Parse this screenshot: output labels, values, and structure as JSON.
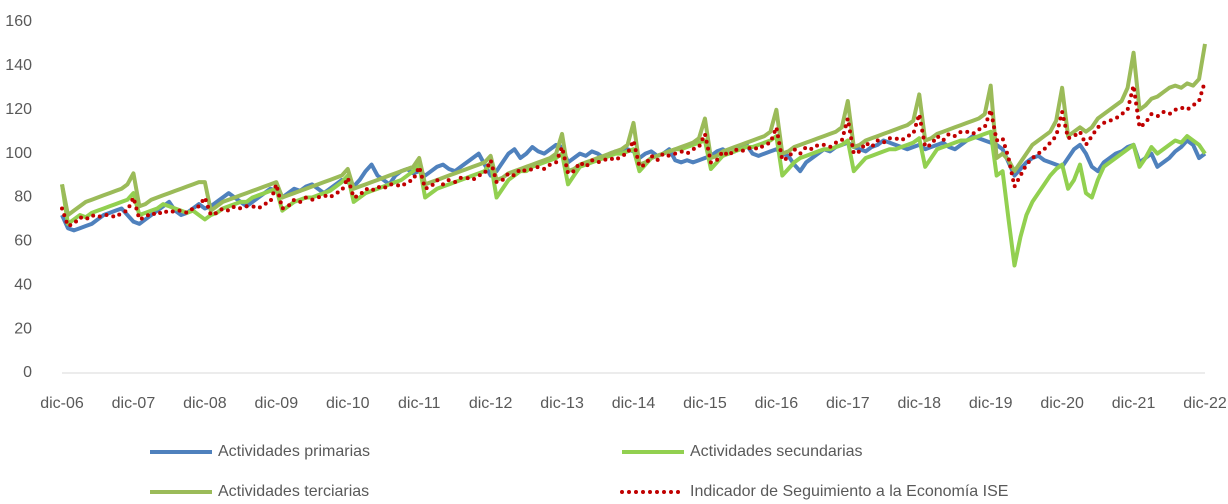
{
  "chart_data": {
    "type": "line",
    "categories": [
      "dic-06",
      null,
      null,
      null,
      null,
      null,
      null,
      null,
      null,
      null,
      null,
      null,
      "dic-07",
      null,
      null,
      null,
      null,
      null,
      null,
      null,
      null,
      null,
      null,
      null,
      "dic-08",
      null,
      null,
      null,
      null,
      null,
      null,
      null,
      null,
      null,
      null,
      null,
      "dic-09",
      null,
      null,
      null,
      null,
      null,
      null,
      null,
      null,
      null,
      null,
      null,
      "dic-10",
      null,
      null,
      null,
      null,
      null,
      null,
      null,
      null,
      null,
      null,
      null,
      "dic-11",
      null,
      null,
      null,
      null,
      null,
      null,
      null,
      null,
      null,
      null,
      null,
      "dic-12",
      null,
      null,
      null,
      null,
      null,
      null,
      null,
      null,
      null,
      null,
      null,
      "dic-13",
      null,
      null,
      null,
      null,
      null,
      null,
      null,
      null,
      null,
      null,
      null,
      "dic-14",
      null,
      null,
      null,
      null,
      null,
      null,
      null,
      null,
      null,
      null,
      null,
      "dic-15",
      null,
      null,
      null,
      null,
      null,
      null,
      null,
      null,
      null,
      null,
      null,
      "dic-16",
      null,
      null,
      null,
      null,
      null,
      null,
      null,
      null,
      null,
      null,
      null,
      "dic-17",
      null,
      null,
      null,
      null,
      null,
      null,
      null,
      null,
      null,
      null,
      null,
      "dic-18",
      null,
      null,
      null,
      null,
      null,
      null,
      null,
      null,
      null,
      null,
      null,
      "dic-19",
      null,
      null,
      null,
      null,
      null,
      null,
      null,
      null,
      null,
      null,
      null,
      "dic-20",
      null,
      null,
      null,
      null,
      null,
      null,
      null,
      null,
      null,
      null,
      null,
      "dic-21",
      null,
      null,
      null,
      null,
      null,
      null,
      null,
      null,
      null,
      null,
      null,
      "dic-22"
    ],
    "series": [
      {
        "name": "Actividades primarias",
        "color": "#4f81bd",
        "dashed": false,
        "values": [
          72,
          66,
          65,
          66,
          67,
          68,
          70,
          72,
          73,
          74,
          75,
          72,
          69,
          68,
          70,
          72,
          74,
          76,
          78,
          74,
          72,
          73,
          75,
          77,
          75,
          76,
          78,
          80,
          82,
          80,
          78,
          76,
          78,
          80,
          82,
          84,
          83,
          80,
          82,
          84,
          83,
          85,
          86,
          84,
          82,
          84,
          86,
          88,
          87,
          85,
          88,
          92,
          95,
          90,
          88,
          86,
          90,
          92,
          93,
          91,
          92,
          90,
          92,
          94,
          95,
          93,
          92,
          94,
          96,
          98,
          100,
          95,
          90,
          92,
          96,
          100,
          102,
          98,
          100,
          103,
          101,
          100,
          102,
          104,
          103,
          96,
          98,
          100,
          99,
          101,
          100,
          98,
          100,
          101,
          100,
          102,
          101,
          98,
          100,
          101,
          99,
          100,
          102,
          97,
          96,
          97,
          96,
          97,
          98,
          99,
          101,
          102,
          100,
          101,
          103,
          104,
          100,
          99,
          100,
          101,
          102,
          100,
          99,
          95,
          92,
          96,
          98,
          100,
          102,
          101,
          103,
          104,
          105,
          103,
          102,
          101,
          103,
          104,
          106,
          105,
          104,
          103,
          102,
          103,
          104,
          102,
          103,
          104,
          105,
          103,
          102,
          104,
          106,
          108,
          107,
          106,
          105,
          104,
          102,
          96,
          90,
          93,
          96,
          98,
          99,
          97,
          96,
          95,
          94,
          98,
          102,
          104,
          100,
          94,
          92,
          96,
          98,
          100,
          101,
          103,
          104,
          96,
          98,
          100,
          94,
          96,
          98,
          101,
          103,
          106,
          104,
          98,
          100
        ]
      },
      {
        "name": "Actividades secundarias",
        "color": "#92d050",
        "dashed": false,
        "values": [
          86,
          68,
          70,
          72,
          71,
          73,
          74,
          75,
          76,
          77,
          78,
          79,
          82,
          72,
          73,
          74,
          75,
          77,
          76,
          75,
          74,
          73,
          74,
          72,
          70,
          72,
          73,
          75,
          76,
          77,
          78,
          78,
          80,
          81,
          82,
          83,
          84,
          74,
          76,
          78,
          79,
          80,
          80,
          81,
          82,
          83,
          85,
          87,
          90,
          78,
          80,
          82,
          83,
          84,
          85,
          86,
          87,
          88,
          90,
          92,
          95,
          80,
          82,
          84,
          85,
          86,
          87,
          88,
          89,
          90,
          91,
          92,
          96,
          80,
          84,
          88,
          90,
          92,
          92,
          94,
          95,
          96,
          97,
          98,
          100,
          86,
          90,
          94,
          95,
          96,
          97,
          98,
          99,
          100,
          100,
          101,
          102,
          92,
          95,
          98,
          99,
          100,
          101,
          102,
          102,
          103,
          104,
          105,
          106,
          93,
          96,
          99,
          100,
          101,
          102,
          103,
          103,
          104,
          105,
          106,
          108,
          90,
          93,
          96,
          98,
          99,
          100,
          101,
          102,
          102,
          103,
          104,
          106,
          92,
          95,
          98,
          99,
          100,
          101,
          102,
          102,
          103,
          104,
          105,
          107,
          94,
          98,
          102,
          103,
          104,
          105,
          106,
          106,
          107,
          108,
          109,
          110,
          90,
          92,
          70,
          49,
          62,
          72,
          78,
          82,
          86,
          90,
          93,
          95,
          84,
          88,
          95,
          82,
          80,
          88,
          94,
          96,
          98,
          100,
          102,
          104,
          94,
          98,
          103,
          100,
          102,
          104,
          106,
          105,
          108,
          106,
          104,
          100
        ]
      },
      {
        "name": "Actividades terciarias",
        "color": "#9bbb59",
        "dashed": false,
        "values": [
          86,
          72,
          74,
          76,
          78,
          79,
          80,
          81,
          82,
          83,
          84,
          86,
          91,
          76,
          77,
          79,
          80,
          81,
          82,
          83,
          84,
          85,
          86,
          87,
          87,
          74,
          76,
          78,
          79,
          80,
          81,
          82,
          83,
          84,
          85,
          86,
          87,
          80,
          81,
          82,
          83,
          84,
          85,
          86,
          87,
          88,
          89,
          90,
          93,
          84,
          85,
          86,
          87,
          88,
          89,
          90,
          91,
          92,
          93,
          94,
          98,
          86,
          87,
          88,
          89,
          90,
          91,
          92,
          93,
          94,
          95,
          96,
          99,
          88,
          89,
          91,
          92,
          93,
          94,
          95,
          96,
          97,
          98,
          100,
          109,
          92,
          93,
          95,
          96,
          97,
          98,
          99,
          100,
          101,
          102,
          104,
          114,
          95,
          96,
          98,
          99,
          100,
          101,
          102,
          103,
          104,
          105,
          107,
          116,
          98,
          99,
          101,
          102,
          103,
          104,
          105,
          106,
          107,
          108,
          110,
          120,
          100,
          101,
          103,
          104,
          105,
          106,
          107,
          108,
          109,
          110,
          112,
          124,
          103,
          104,
          106,
          107,
          108,
          109,
          110,
          111,
          112,
          113,
          115,
          127,
          106,
          107,
          109,
          110,
          111,
          112,
          113,
          114,
          115,
          116,
          118,
          131,
          98,
          100,
          97,
          92,
          96,
          100,
          104,
          106,
          108,
          110,
          115,
          130,
          108,
          110,
          112,
          110,
          112,
          116,
          118,
          120,
          122,
          124,
          130,
          146,
          120,
          122,
          125,
          126,
          128,
          130,
          131,
          130,
          132,
          131,
          134,
          150
        ]
      },
      {
        "name": "Indicador de Seguimiento a la Economía ISE",
        "color": "#c00000",
        "dashed": true,
        "values": [
          75,
          67,
          68,
          71,
          70,
          72,
          71,
          72,
          72,
          71,
          73,
          74,
          80,
          70,
          71,
          73,
          72,
          74,
          73,
          74,
          74,
          73,
          75,
          76,
          80,
          72,
          73,
          75,
          74,
          76,
          75,
          76,
          76,
          75,
          77,
          78,
          86,
          75,
          76,
          79,
          78,
          80,
          79,
          80,
          81,
          80,
          82,
          83,
          89,
          80,
          81,
          84,
          83,
          85,
          84,
          86,
          86,
          85,
          87,
          88,
          94,
          84,
          85,
          88,
          86,
          88,
          87,
          89,
          89,
          88,
          90,
          91,
          97,
          87,
          88,
          91,
          90,
          93,
          92,
          93,
          94,
          93,
          95,
          96,
          103,
          91,
          92,
          96,
          94,
          97,
          96,
          97,
          98,
          97,
          99,
          100,
          106,
          94,
          95,
          99,
          97,
          100,
          99,
          100,
          101,
          100,
          102,
          103,
          109,
          96,
          97,
          101,
          99,
          102,
          101,
          102,
          103,
          102,
          104,
          105,
          112,
          97,
          98,
          102,
          100,
          103,
          102,
          104,
          104,
          103,
          105,
          106,
          116,
          100,
          101,
          105,
          103,
          106,
          105,
          107,
          107,
          106,
          108,
          109,
          118,
          103,
          104,
          108,
          106,
          109,
          108,
          110,
          110,
          109,
          111,
          112,
          120,
          106,
          107,
          98,
          85,
          90,
          95,
          98,
          100,
          102,
          105,
          108,
          119,
          107,
          108,
          110,
          104,
          108,
          112,
          114,
          115,
          116,
          118,
          120,
          131,
          112,
          114,
          118,
          117,
          119,
          118,
          120,
          121,
          120,
          122,
          124,
          133
        ]
      }
    ],
    "ylim": [
      0,
      160
    ],
    "yticks": [
      0,
      20,
      40,
      60,
      80,
      100,
      120,
      140,
      160
    ],
    "grid": false
  }
}
